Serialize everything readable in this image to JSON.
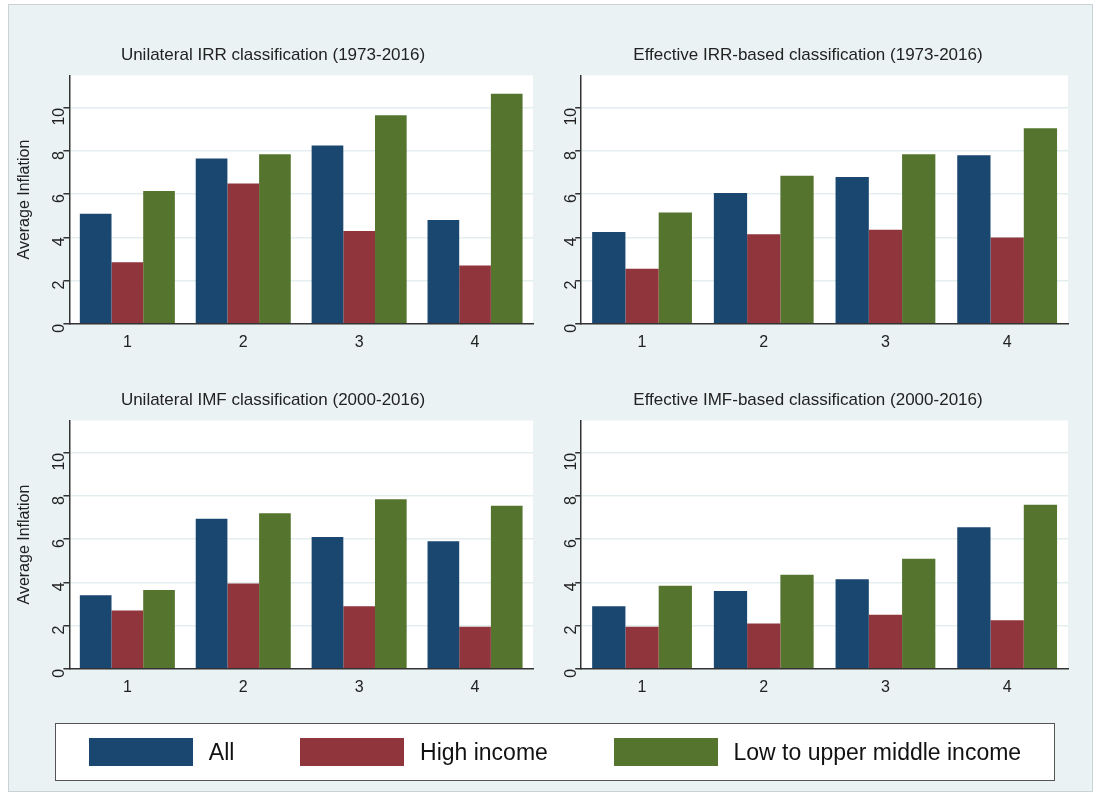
{
  "chart_data": [
    {
      "type": "bar",
      "title": "Unilateral IRR classification (1973-2016)",
      "ylabel": "Average Inflation",
      "categories": [
        "1",
        "2",
        "3",
        "4"
      ],
      "ylim": [
        0,
        11.5
      ],
      "yticks": [
        0,
        2,
        4,
        6,
        8,
        10
      ],
      "grid": "y",
      "legend": "bottom",
      "series": [
        {
          "name": "All",
          "color": "#1a476f",
          "values": [
            5.1,
            7.65,
            8.25,
            4.8
          ]
        },
        {
          "name": "High income",
          "color": "#90353b",
          "values": [
            2.85,
            6.5,
            4.3,
            2.7
          ]
        },
        {
          "name": "Low to upper middle income",
          "color": "#55752f",
          "values": [
            6.15,
            7.85,
            9.65,
            10.65
          ]
        }
      ]
    },
    {
      "type": "bar",
      "title": "Effective IRR-based classification (1973-2016)",
      "categories": [
        "1",
        "2",
        "3",
        "4"
      ],
      "ylim": [
        0,
        11.5
      ],
      "yticks": [
        0,
        2,
        4,
        6,
        8,
        10
      ],
      "grid": "y",
      "series": [
        {
          "color": "#1a476f",
          "values": [
            4.25,
            6.05,
            6.8,
            7.8
          ]
        },
        {
          "color": "#90353b",
          "values": [
            2.55,
            4.15,
            4.35,
            4.0
          ]
        },
        {
          "color": "#55752f",
          "values": [
            5.15,
            6.85,
            7.85,
            9.05
          ]
        }
      ]
    },
    {
      "type": "bar",
      "title": "Unilateral IMF classification (2000-2016)",
      "ylabel": "Average Inflation",
      "categories": [
        "1",
        "2",
        "3",
        "4"
      ],
      "ylim": [
        0,
        11.5
      ],
      "yticks": [
        0,
        2,
        4,
        6,
        8,
        10
      ],
      "grid": "y",
      "series": [
        {
          "color": "#1a476f",
          "values": [
            3.4,
            6.95,
            6.1,
            5.9
          ]
        },
        {
          "color": "#90353b",
          "values": [
            2.7,
            3.95,
            2.9,
            1.95
          ]
        },
        {
          "color": "#55752f",
          "values": [
            3.65,
            7.2,
            7.85,
            7.55
          ]
        }
      ]
    },
    {
      "type": "bar",
      "title": "Effective IMF-based classification (2000-2016)",
      "categories": [
        "1",
        "2",
        "3",
        "4"
      ],
      "ylim": [
        0,
        11.5
      ],
      "yticks": [
        0,
        2,
        4,
        6,
        8,
        10
      ],
      "grid": "y",
      "series": [
        {
          "color": "#1a476f",
          "values": [
            2.9,
            3.6,
            4.15,
            6.55
          ]
        },
        {
          "color": "#90353b",
          "values": [
            1.95,
            2.1,
            2.5,
            2.25
          ]
        },
        {
          "color": "#55752f",
          "values": [
            3.85,
            4.35,
            5.1,
            7.6
          ]
        }
      ]
    }
  ]
}
